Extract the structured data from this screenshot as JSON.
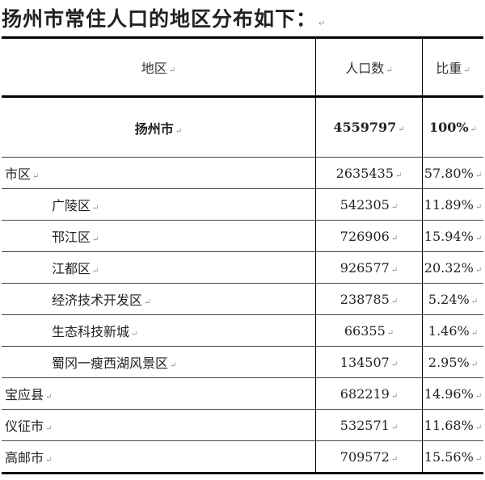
{
  "title": "扬州市常住人口的地区分布如下：",
  "paragraph_mark": "↵",
  "headers": [
    "地区",
    "人口数",
    "比重"
  ],
  "total": {
    "region": "扬州市",
    "population": "4559797",
    "share": "100%"
  },
  "rows": [
    {
      "region": "市区",
      "population": "2635435",
      "share": "57.80%",
      "level": 0
    },
    {
      "region": "广陵区",
      "population": "542305",
      "share": "11.89%",
      "level": 1
    },
    {
      "region": "邗江区",
      "population": "726906",
      "share": "15.94%",
      "level": 1
    },
    {
      "region": "江都区",
      "population": "926577",
      "share": "20.32%",
      "level": 1
    },
    {
      "region": "经济技术开发区",
      "population": "238785",
      "share": "5.24%",
      "level": 1
    },
    {
      "region": "生态科技新城",
      "population": "66355",
      "share": "1.46%",
      "level": 1
    },
    {
      "region": "蜀冈一瘦西湖风景区",
      "population": "134507",
      "share": "2.95%",
      "level": 1
    },
    {
      "region": "宝应县",
      "population": "682219",
      "share": "14.96%",
      "level": 0
    },
    {
      "region": "仪征市",
      "population": "532571",
      "share": "11.68%",
      "level": 0
    },
    {
      "region": "高邮市",
      "population": "709572",
      "share": "15.56%",
      "level": 0
    }
  ]
}
